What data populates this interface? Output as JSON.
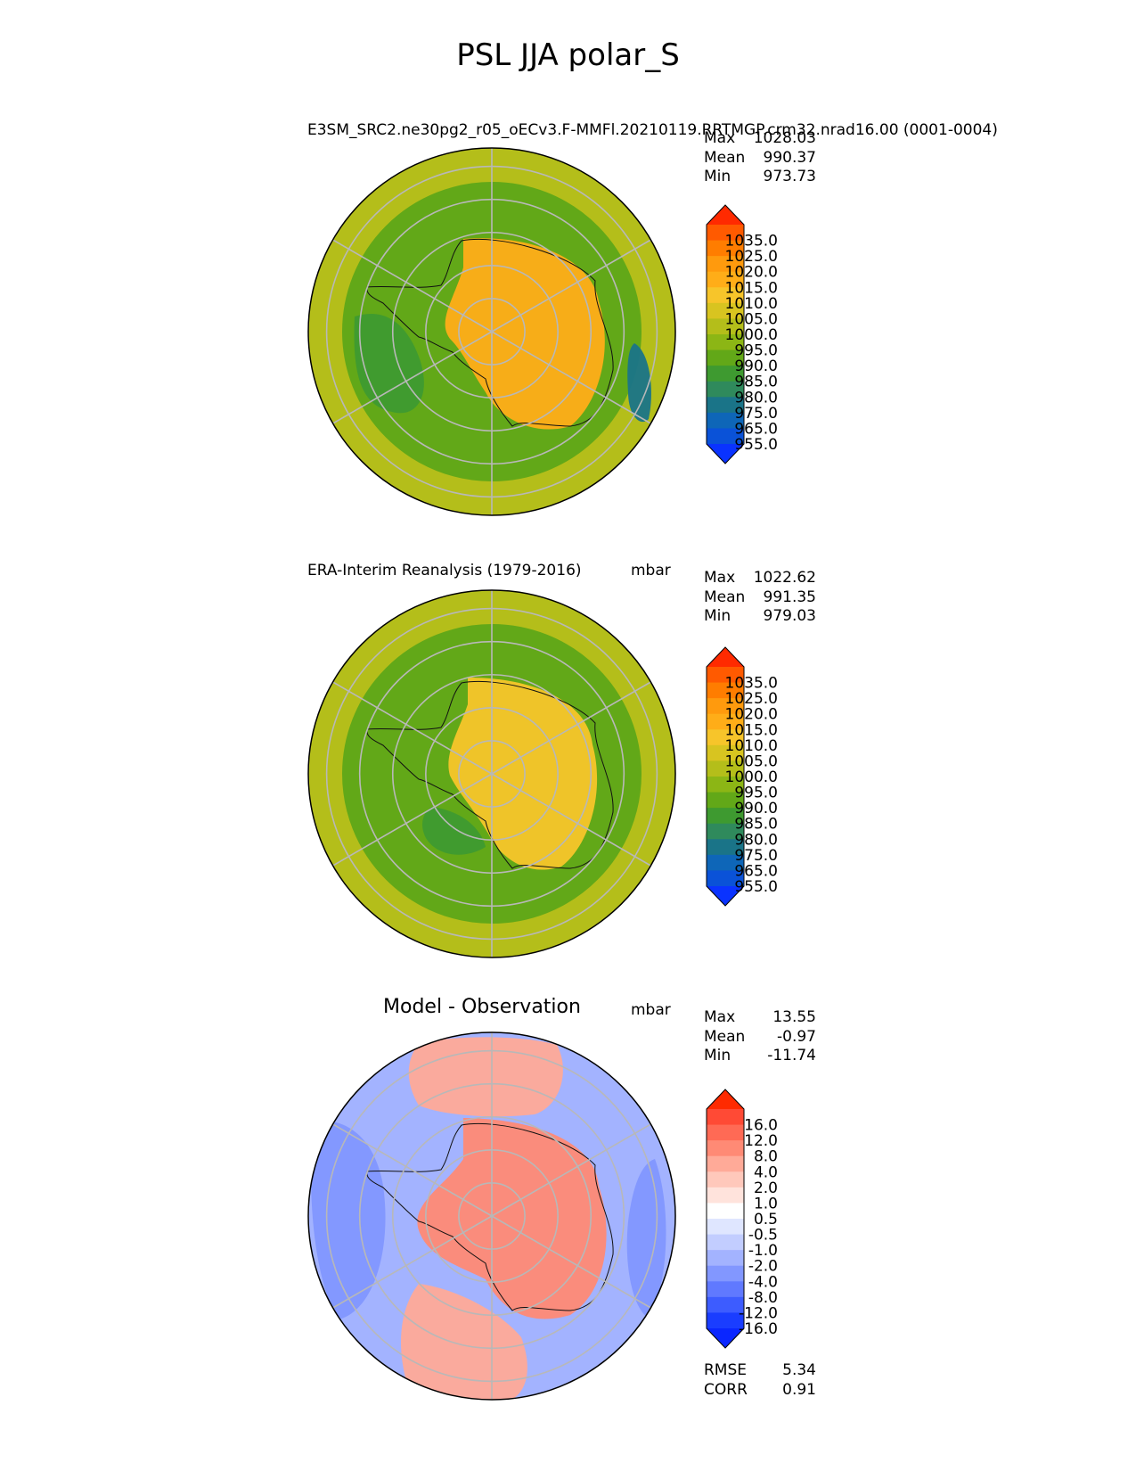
{
  "figure": {
    "title": "PSL JJA polar_S"
  },
  "panels": [
    {
      "title": "E3SM_SRC2.ne30pg2_r05_oECv3.F-MMFl.20210119.RRTMGP.crm32.nrad16.00 (0001-0004)",
      "units": "",
      "stats": [
        {
          "label": "Max",
          "value": "1028.03"
        },
        {
          "label": "Mean",
          "value": "990.37"
        },
        {
          "label": "Min",
          "value": "973.73"
        }
      ]
    },
    {
      "title": "ERA-Interim Reanalysis (1979-2016)",
      "units": "mbar",
      "stats": [
        {
          "label": "Max",
          "value": "1022.62"
        },
        {
          "label": "Mean",
          "value": "991.35"
        },
        {
          "label": "Min",
          "value": "979.03"
        }
      ]
    },
    {
      "title": "Model - Observation",
      "units": "mbar",
      "stats": [
        {
          "label": "Max",
          "value": "13.55"
        },
        {
          "label": "Mean",
          "value": "-0.97"
        },
        {
          "label": "Min",
          "value": "-11.74"
        }
      ],
      "metrics": [
        {
          "label": "RMSE",
          "value": "5.34"
        },
        {
          "label": "CORR",
          "value": "0.91"
        }
      ]
    }
  ],
  "chart_data": [
    {
      "type": "heatmap",
      "projection": "south-polar-stereographic",
      "title": "E3SM_SRC2.ne30pg2_r05_oECv3.F-MMFl.20210119.RRTMGP.crm32.nrad16.00 (0001-0004)",
      "variable": "PSL",
      "colorbar": {
        "ticks": [
          "1035.0",
          "1025.0",
          "1020.0",
          "1015.0",
          "1010.0",
          "1005.0",
          "1000.0",
          "995.0",
          "990.0",
          "985.0",
          "980.0",
          "975.0",
          "965.0",
          "955.0"
        ],
        "colors": [
          "#ff2a00",
          "#ff5a00",
          "#ff7d00",
          "#ff9a0d",
          "#ffad18",
          "#f7c52a",
          "#d8c420",
          "#b4be1a",
          "#8cb615",
          "#62a818",
          "#3e9a30",
          "#2f8a5c",
          "#1a7488",
          "#0e66b8",
          "#0a52d8",
          "#0a33ff"
        ],
        "extend": "both"
      },
      "regions": [
        {
          "name": "background",
          "value": 987
        },
        {
          "name": "antarctic-high",
          "value": 1012
        },
        {
          "name": "outer-ring",
          "value": 997
        },
        {
          "name": "east-low",
          "value": 972
        },
        {
          "name": "west-low",
          "value": 982
        }
      ]
    },
    {
      "type": "heatmap",
      "projection": "south-polar-stereographic",
      "title": "ERA-Interim Reanalysis (1979-2016)",
      "variable": "PSL",
      "colorbar": {
        "ticks": [
          "1035.0",
          "1025.0",
          "1020.0",
          "1015.0",
          "1010.0",
          "1005.0",
          "1000.0",
          "995.0",
          "990.0",
          "985.0",
          "980.0",
          "975.0",
          "965.0",
          "955.0"
        ],
        "colors": [
          "#ff2a00",
          "#ff5a00",
          "#ff7d00",
          "#ff9a0d",
          "#ffad18",
          "#f7c52a",
          "#d8c420",
          "#b4be1a",
          "#8cb615",
          "#62a818",
          "#3e9a30",
          "#2f8a5c",
          "#1a7488",
          "#0e66b8",
          "#0a52d8",
          "#0a33ff"
        ],
        "extend": "both"
      },
      "regions": [
        {
          "name": "background",
          "value": 985
        },
        {
          "name": "antarctic-high",
          "value": 1008
        },
        {
          "name": "outer-ring",
          "value": 997
        },
        {
          "name": "west-low",
          "value": 981
        }
      ]
    },
    {
      "type": "heatmap",
      "projection": "south-polar-stereographic",
      "title": "Model - Observation",
      "variable": "PSL difference",
      "colorbar": {
        "ticks": [
          "16.0",
          "12.0",
          "8.0",
          "4.0",
          "2.0",
          "1.0",
          "0.5",
          "-0.5",
          "-1.0",
          "-2.0",
          "-4.0",
          "-8.0",
          "-12.0",
          "-16.0"
        ],
        "colors": [
          "#ff2a00",
          "#ff4a35",
          "#ff6a55",
          "#ff8a75",
          "#ffaa98",
          "#ffc8bb",
          "#ffe3dc",
          "#ffffff",
          "#dfe6ff",
          "#c2cdff",
          "#a3b3ff",
          "#8297ff",
          "#6079ff",
          "#3d5cff",
          "#1a3dff",
          "#0a26ff"
        ],
        "extend": "both"
      },
      "regions": [
        {
          "name": "background",
          "value": -3
        },
        {
          "name": "antarctic-positive",
          "value": 6
        },
        {
          "name": "pacific-positive",
          "value": 3
        },
        {
          "name": "atlantic-positive",
          "value": 2
        },
        {
          "name": "southwest-negative",
          "value": -6
        },
        {
          "name": "east-negative",
          "value": -5
        }
      ]
    }
  ]
}
